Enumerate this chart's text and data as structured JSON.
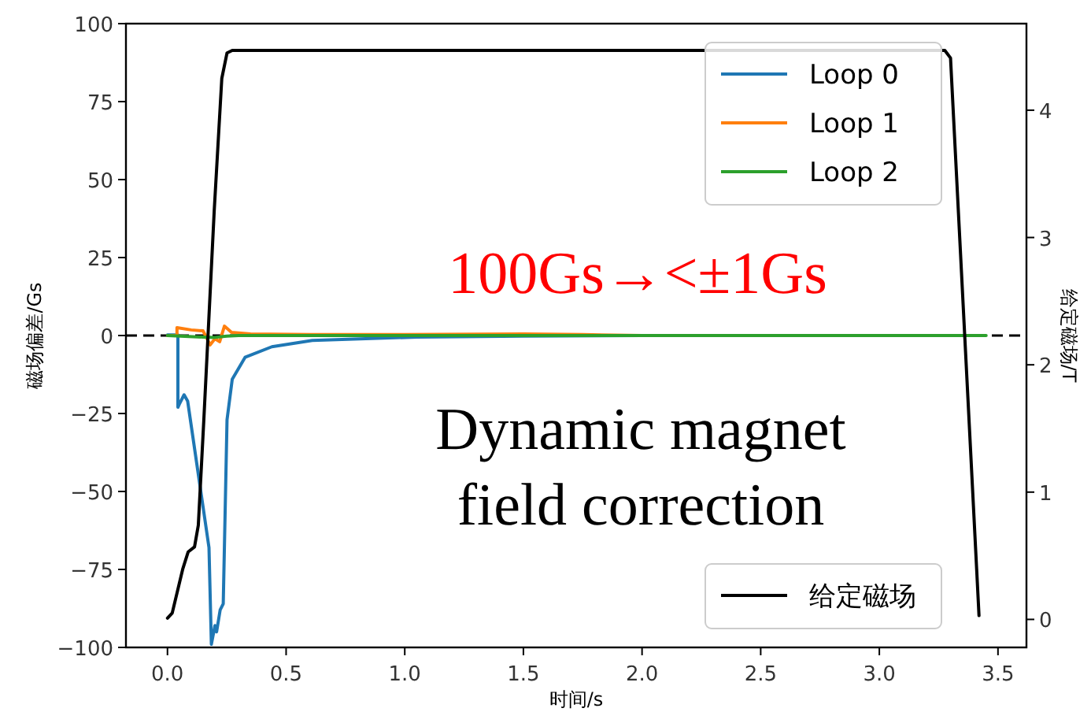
{
  "chart_data": {
    "type": "line",
    "xlabel": "时间/s",
    "ylabel": "磁场偏差/Gs",
    "y2label": "给定磁场/T",
    "xlim": [
      -0.175,
      3.62
    ],
    "ylim": [
      -100,
      100
    ],
    "y2lim": [
      -0.22,
      4.68
    ],
    "xticks": [
      {
        "value": 0,
        "label": "0.0"
      },
      {
        "value": 0.5,
        "label": "0.5"
      },
      {
        "value": 1,
        "label": "1.0"
      },
      {
        "value": 1.5,
        "label": "1.5"
      },
      {
        "value": 2,
        "label": "2.0"
      },
      {
        "value": 2.5,
        "label": "2.5"
      },
      {
        "value": 3,
        "label": "3.0"
      },
      {
        "value": 3.5,
        "label": "3.5"
      }
    ],
    "yticks": [
      {
        "value": -100,
        "label": "−100"
      },
      {
        "value": -75,
        "label": "−75"
      },
      {
        "value": -50,
        "label": "−50"
      },
      {
        "value": -25,
        "label": "−25"
      },
      0,
      25,
      50,
      75,
      100
    ],
    "y2ticks": [
      0,
      1,
      2,
      3,
      4
    ],
    "grid": false,
    "legend": "right",
    "series": [
      {
        "name": "Loop 0",
        "color": "#1f77b4",
        "x": [
          0,
          0.044,
          0.044,
          0.05,
          0.07,
          0.085,
          0.175,
          0.185,
          0.2,
          0.207,
          0.222,
          0.235,
          0.251,
          0.273,
          0.327,
          0.44,
          0.61,
          1.05,
          1.5,
          2.0
        ],
        "values": [
          0.2,
          0.2,
          -23,
          -22,
          -19,
          -21,
          -68,
          -99,
          -93,
          -95,
          -88,
          -86,
          -27,
          -14,
          -7,
          -3.6,
          -1.6,
          -0.5,
          -0.2,
          0
        ]
      },
      {
        "name": "Loop 1",
        "color": "#ff7f0e",
        "x": [
          0,
          0.04,
          0.04,
          0.1,
          0.15,
          0.18,
          0.2,
          0.22,
          0.24,
          0.27,
          0.35,
          0.6,
          1.0,
          1.5,
          1.75,
          2.0
        ],
        "values": [
          0,
          0,
          2.5,
          1.8,
          1.5,
          -3,
          -1,
          -2,
          3,
          1,
          0.5,
          0.3,
          0.3,
          0.5,
          0.3,
          0
        ]
      },
      {
        "name": "Loop 2",
        "color": "#2ca02c",
        "x": [
          0,
          0.15,
          0.2,
          0.25,
          0.3,
          1.0,
          2.0,
          3.0,
          3.45
        ],
        "values": [
          0,
          -0.5,
          -0.6,
          -0.2,
          0,
          0,
          0,
          0,
          0
        ]
      },
      {
        "name": "给定磁场",
        "color": "#000000",
        "axis": "y2",
        "x": [
          0,
          0.02,
          0.065,
          0.087,
          0.114,
          0.13,
          0.153,
          0.197,
          0.229,
          0.251,
          0.273,
          3.276,
          3.3,
          3.41,
          3.42
        ],
        "values": [
          0.01,
          0.05,
          0.4,
          0.53,
          0.57,
          0.74,
          1.56,
          3.21,
          4.25,
          4.45,
          4.47,
          4.47,
          4.41,
          0.4,
          0.03
        ]
      }
    ],
    "ref_lines": [
      {
        "axis": "y",
        "value": 0,
        "color": "#000000",
        "line_style": "dashed"
      }
    ],
    "annotations": [
      "100Gs→<±1Gs",
      "Dynamic magnet field correction"
    ]
  }
}
